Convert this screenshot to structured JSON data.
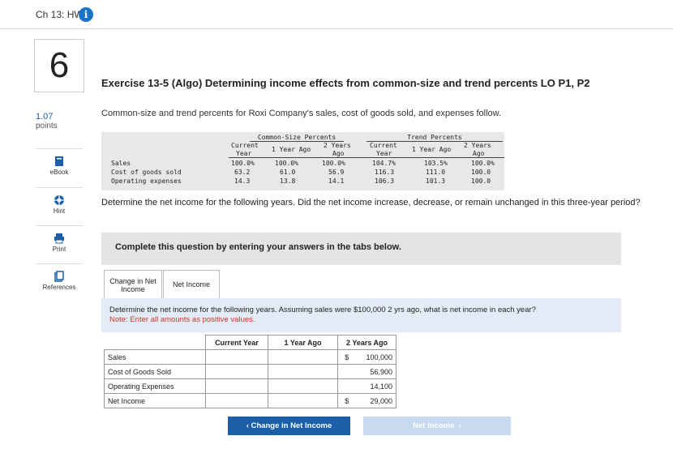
{
  "header": {
    "title": "Ch 13: HW",
    "info_icon": "i"
  },
  "question": {
    "number": "6",
    "points_value": "1.07",
    "points_label": "points"
  },
  "sidebar": {
    "items": [
      {
        "label": "eBook",
        "icon": "book-icon"
      },
      {
        "label": "Hint",
        "icon": "lifebuoy-icon"
      },
      {
        "label": "Print",
        "icon": "printer-icon"
      },
      {
        "label": "References",
        "icon": "references-icon"
      }
    ]
  },
  "exercise": {
    "heading": "Exercise 13-5 (Algo) Determining income effects from common-size and trend percents LO P1, P2",
    "intro": "Common-size and trend percents for Roxi Company's sales, cost of goods sold, and expenses follow.",
    "data_table": {
      "group_common": "Common-Size Percents",
      "group_trend": "Trend Percents",
      "col_current_1": "Current",
      "col_current_2": "Year",
      "col_1yr": "1 Year Ago",
      "col_2yr_1": "2 Years",
      "col_2yr_2": "Ago",
      "rows": [
        {
          "label": "Sales",
          "cs_cur": "100.0%",
          "cs_1": "100.0%",
          "cs_2": "100.0%",
          "tr_cur": "104.7%",
          "tr_1": "103.5%",
          "tr_2": "100.0%"
        },
        {
          "label": "Cost of goods sold",
          "cs_cur": "63.2",
          "cs_1": "61.0",
          "cs_2": "56.9",
          "tr_cur": "116.3",
          "tr_1": "111.0",
          "tr_2": "100.0"
        },
        {
          "label": "Operating expenses",
          "cs_cur": "14.3",
          "cs_1": "13.8",
          "cs_2": "14.1",
          "tr_cur": "106.3",
          "tr_1": "101.3",
          "tr_2": "100.0"
        }
      ]
    },
    "prompt": "Determine the net income for the following years. Did the net income increase, decrease, or remain unchanged in this three-year period?",
    "banner": "Complete this question by entering your answers in the tabs below."
  },
  "tabs": [
    {
      "label": "Change in Net Income"
    },
    {
      "label": "Net Income"
    }
  ],
  "panel": {
    "instruction": "Determine the net income for the following years. Assuming sales were $100,000 2 yrs ago, what is net income in each year?",
    "note": "Note: Enter all amounts as positive values."
  },
  "grid": {
    "headers": [
      "",
      "Current Year",
      "1 Year Ago",
      "2 Years Ago"
    ],
    "rows": [
      {
        "label": "Sales",
        "current": "",
        "one_year": "",
        "two_year_prefix": "$",
        "two_year": "100,000"
      },
      {
        "label": "Cost of Goods Sold",
        "current": "",
        "one_year": "",
        "two_year_prefix": "",
        "two_year": "56,900"
      },
      {
        "label": "Operating Expenses",
        "current": "",
        "one_year": "",
        "two_year_prefix": "",
        "two_year": "14,100"
      },
      {
        "label": "Net Income",
        "current": "",
        "one_year": "",
        "two_year_prefix": "$",
        "two_year": "29,000"
      }
    ]
  },
  "nav": {
    "prev_label": "Change in Net Income",
    "next_label": "Net Income"
  },
  "colors": {
    "accent": "#1a5fa8",
    "info": "#1a73c8",
    "panel": "#e3ecf6",
    "note": "#c0392b"
  }
}
